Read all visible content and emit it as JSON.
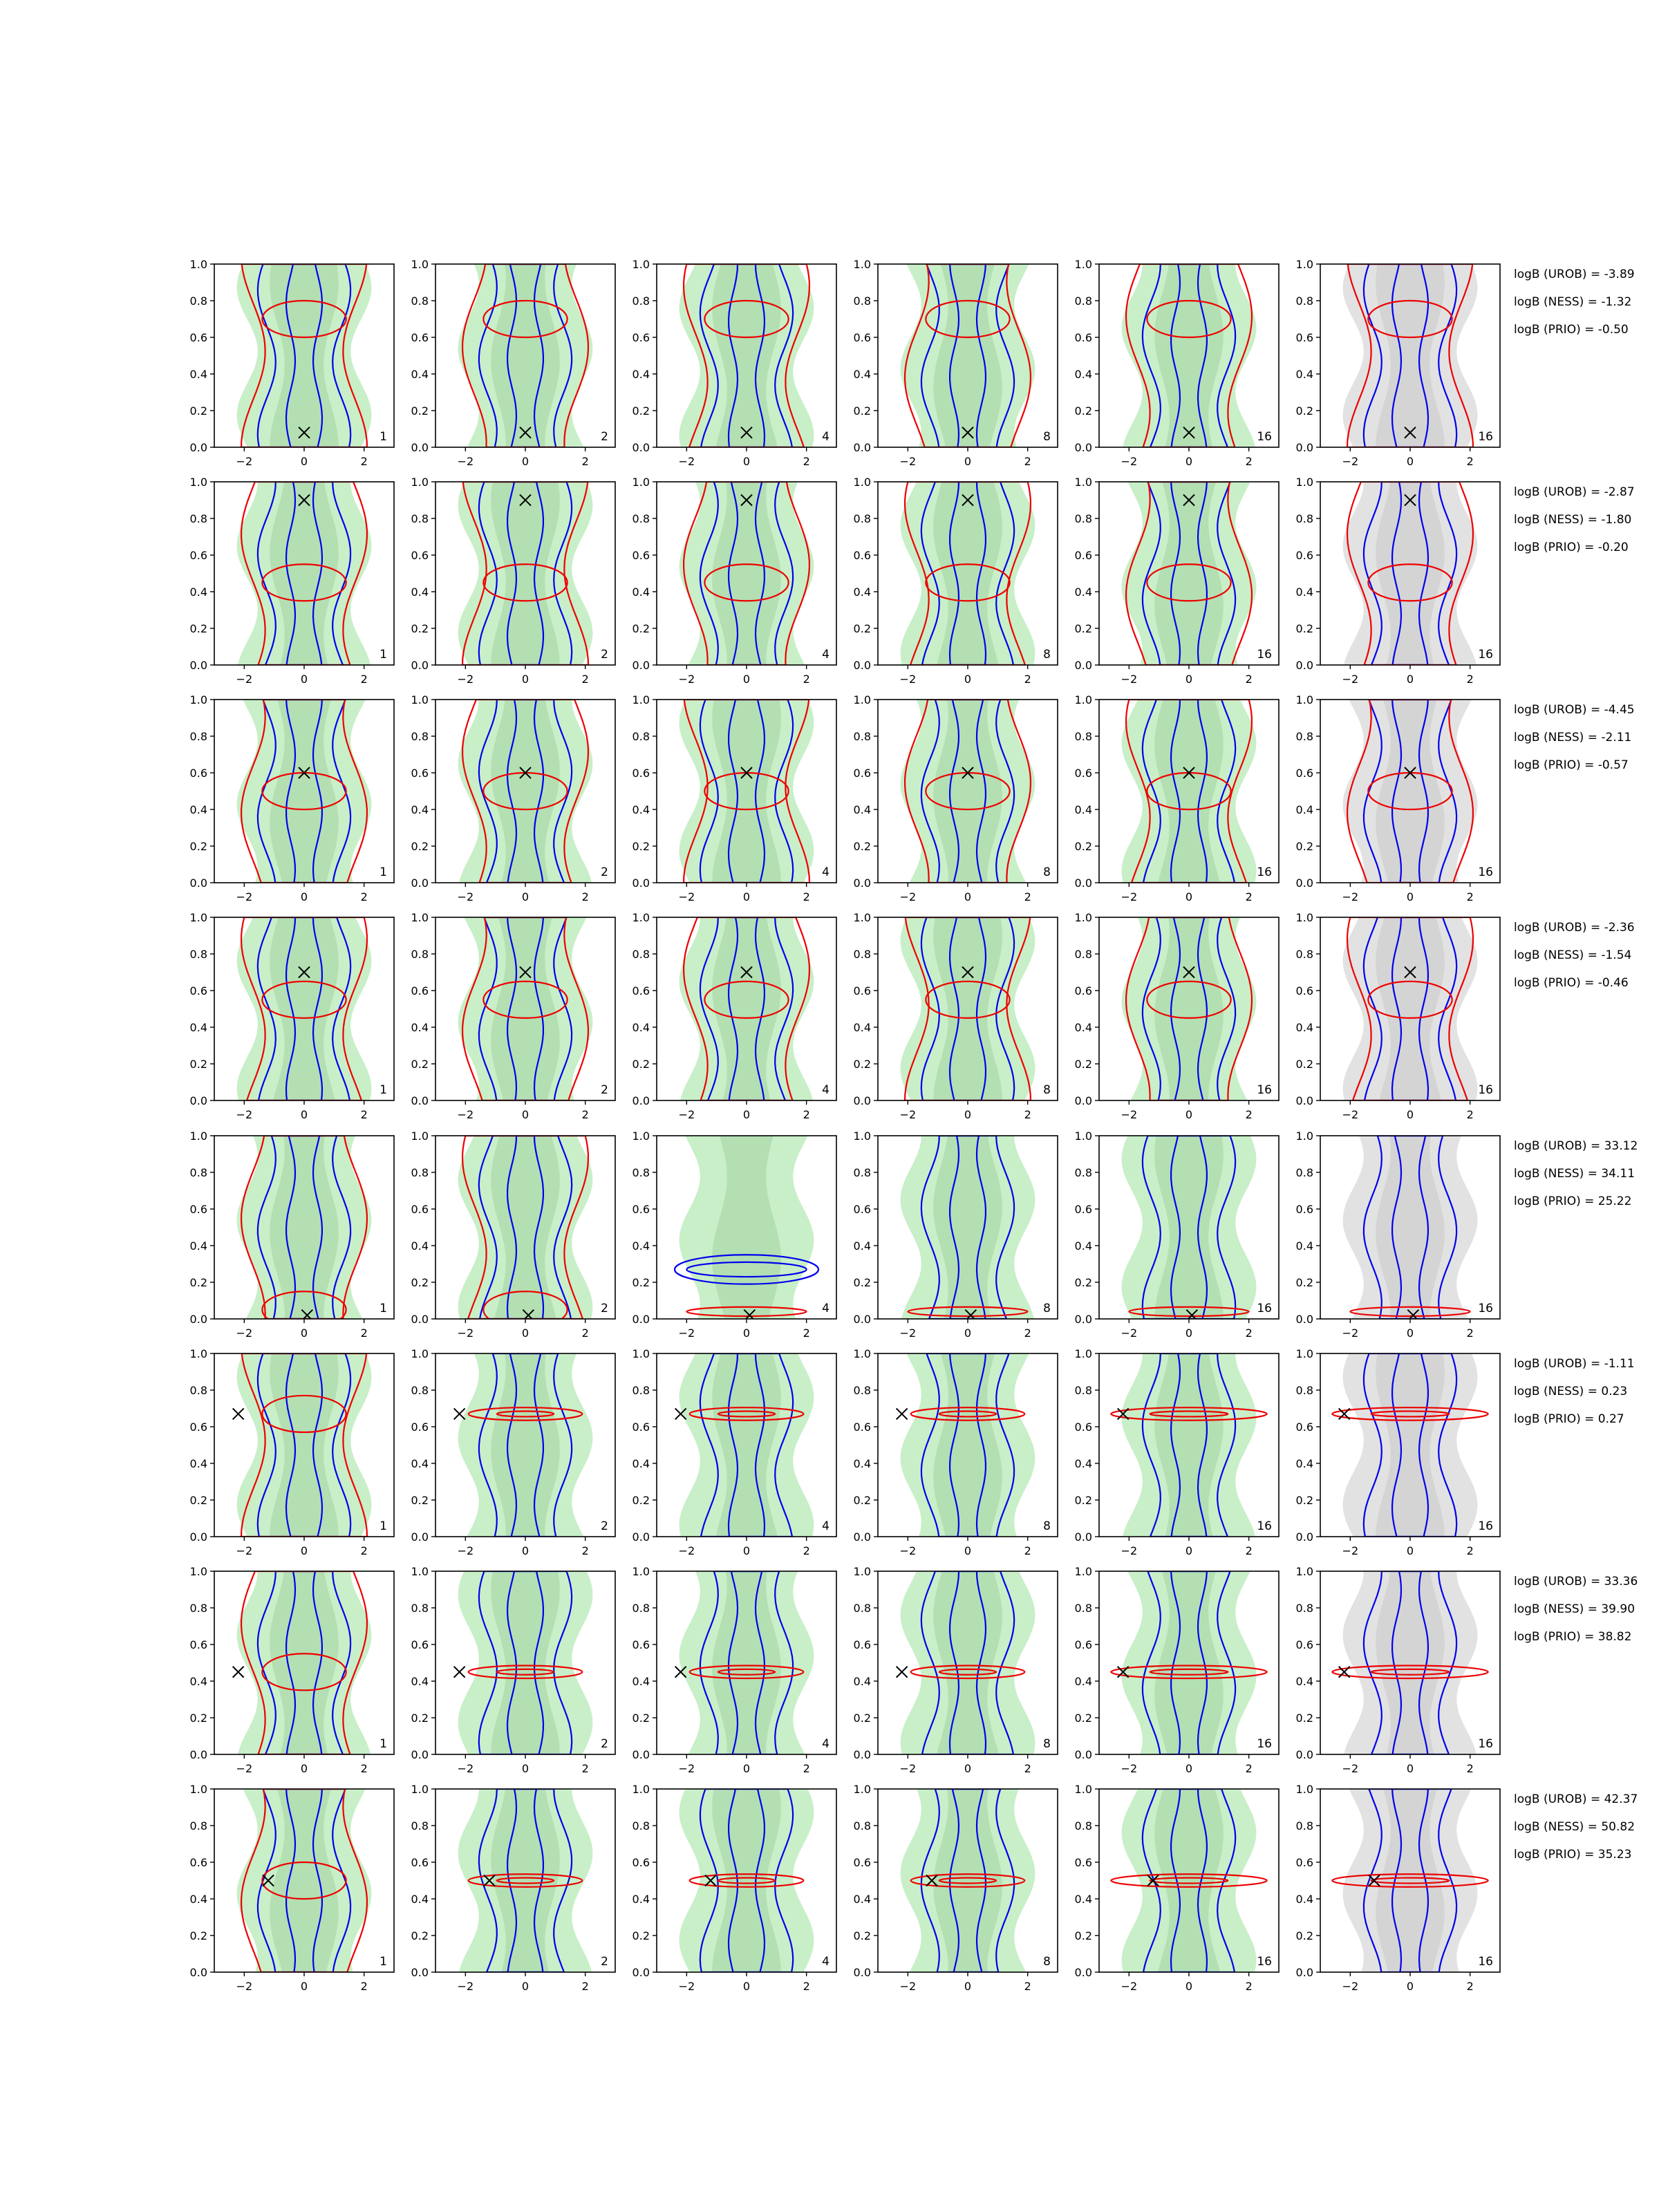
{
  "figure": {
    "description_free": true
  },
  "chart_data": {
    "type": "contour",
    "grid": {
      "rows": 8,
      "cols": 6
    },
    "xlim": [
      -3,
      3
    ],
    "ylim": [
      0,
      1
    ],
    "xticks": [
      "−2",
      "0",
      "2"
    ],
    "yticks": [
      "0.0",
      "0.2",
      "0.4",
      "0.6",
      "0.8",
      "1.0"
    ],
    "column_labels": [
      "1",
      "2",
      "4",
      "8",
      "16",
      "16"
    ],
    "column_background": [
      "green",
      "green",
      "green",
      "green",
      "green",
      "grey"
    ],
    "layers": {
      "fill_green": "#c8efc8",
      "fill_green_inner": "#a9d9a9",
      "fill_grey": "#e2e2e2",
      "fill_grey_inner": "#cfcfcf",
      "blue": "#0000ee",
      "red": "#ee0000",
      "marker": "#000000"
    },
    "markers": [
      {
        "x": 0.0,
        "y": 0.08
      },
      {
        "x": 0.0,
        "y": 0.9
      },
      {
        "x": 0.0,
        "y": 0.6
      },
      {
        "x": 0.0,
        "y": 0.7
      },
      {
        "x": 0.1,
        "y": 0.02
      },
      {
        "x": -2.2,
        "y": 0.67
      },
      {
        "x": -2.2,
        "y": 0.45
      },
      {
        "x": -1.2,
        "y": 0.5
      }
    ],
    "row_styles": [
      {
        "blue": "narrow",
        "red": "blob-top",
        "redY": 0.7
      },
      {
        "blue": "narrow",
        "red": "wide",
        "redY": 0.45
      },
      {
        "blue": "narrow",
        "red": "wide",
        "redY": 0.5
      },
      {
        "blue": "narrow",
        "red": "wide",
        "redY": 0.55
      },
      {
        "blue": "mixed",
        "red": "low",
        "redY": 0.05
      },
      {
        "blue": "narrow",
        "red": "band",
        "redY": 0.67
      },
      {
        "blue": "mixed",
        "red": "band",
        "redY": 0.45
      },
      {
        "blue": "mixed",
        "red": "band",
        "redY": 0.5
      }
    ],
    "logB": [
      {
        "urob": "logB (UROB) = -3.89",
        "ness": "logB (NESS) = -1.32",
        "prio": "logB (PRIO) = -0.50"
      },
      {
        "urob": "logB (UROB) = -2.87",
        "ness": "logB (NESS) = -1.80",
        "prio": "logB (PRIO) = -0.20"
      },
      {
        "urob": "logB (UROB) = -4.45",
        "ness": "logB (NESS) = -2.11",
        "prio": "logB (PRIO) = -0.57"
      },
      {
        "urob": "logB (UROB) = -2.36",
        "ness": "logB (NESS) = -1.54",
        "prio": "logB (PRIO) = -0.46"
      },
      {
        "urob": "logB (UROB) = 33.12",
        "ness": "logB (NESS) = 34.11",
        "prio": "logB (PRIO) = 25.22"
      },
      {
        "urob": "logB (UROB) = -1.11",
        "ness": "logB (NESS) = 0.23",
        "prio": "logB (PRIO) = 0.27"
      },
      {
        "urob": "logB (UROB) = 33.36",
        "ness": "logB (NESS) = 39.90",
        "prio": "logB (PRIO) = 38.82"
      },
      {
        "urob": "logB (UROB) = 42.37",
        "ness": "logB (NESS) = 50.82",
        "prio": "logB (PRIO) = 35.23"
      }
    ]
  }
}
